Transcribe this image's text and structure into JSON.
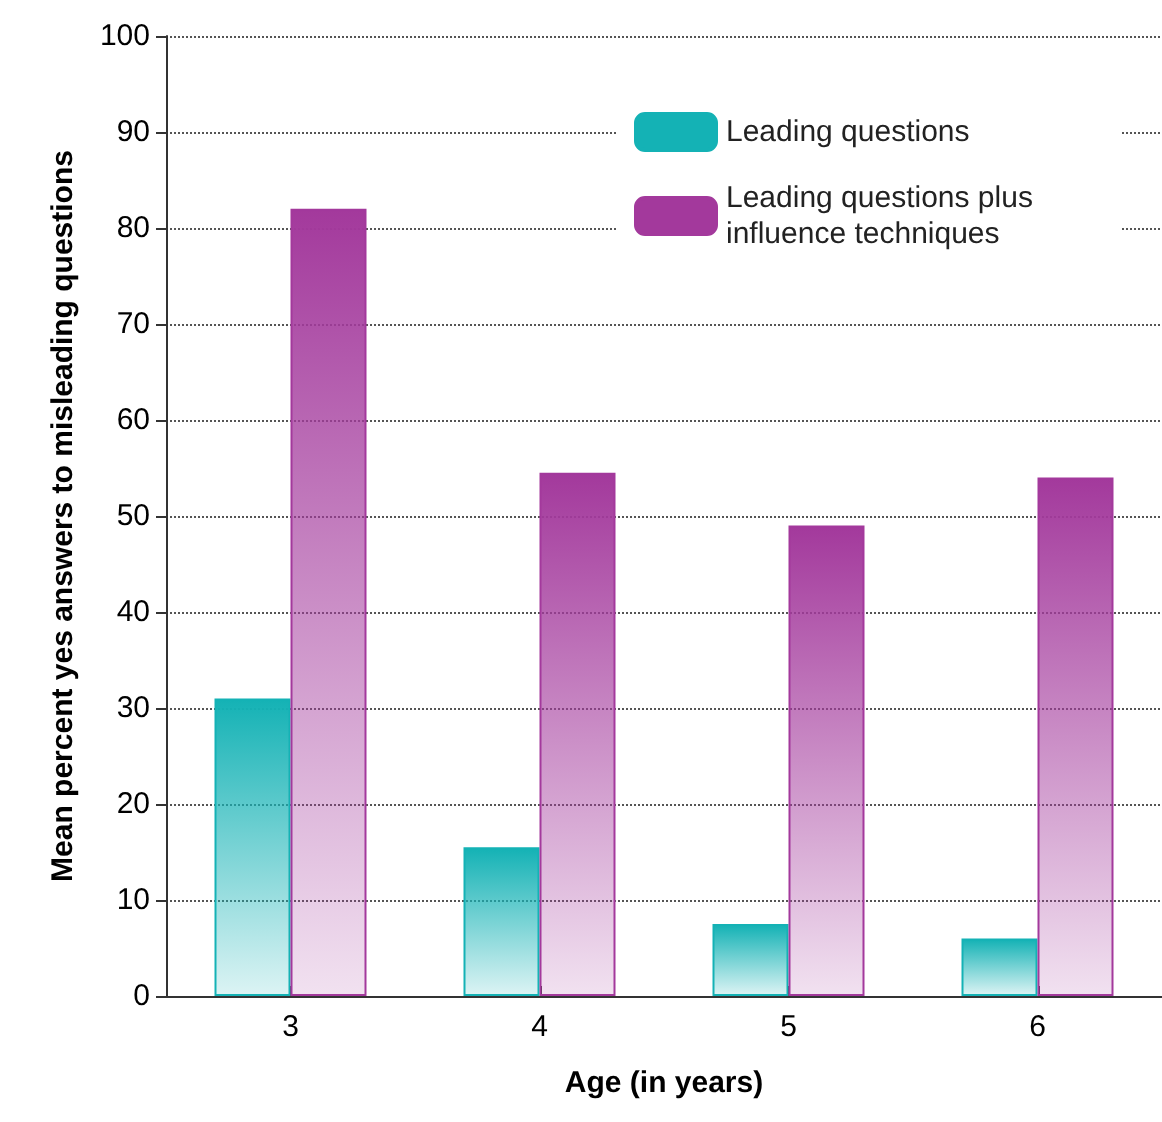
{
  "chart_data": {
    "type": "bar",
    "xlabel": "Age (in years)",
    "ylabel": "Mean percent yes answers to misleading questions",
    "categories": [
      "3",
      "4",
      "5",
      "6"
    ],
    "series": [
      {
        "name": "Leading questions",
        "color": "#14b2b5",
        "values": [
          31,
          15.5,
          7.5,
          6
        ]
      },
      {
        "name": "Leading questions plus influence techniques",
        "color": "#a3399c",
        "values": [
          82,
          54.5,
          49,
          54
        ]
      }
    ],
    "ylim": [
      0,
      100
    ],
    "yticks": [
      0,
      10,
      20,
      30,
      40,
      50,
      60,
      70,
      80,
      90,
      100
    ],
    "grid": "y",
    "legend": "top right"
  }
}
